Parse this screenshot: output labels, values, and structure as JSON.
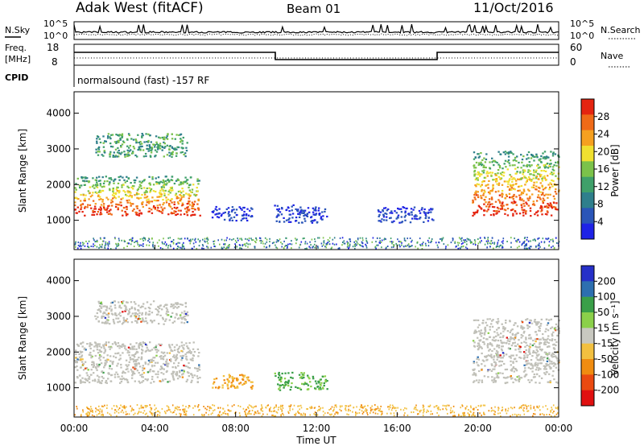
{
  "header": {
    "radar": "Adak West (fitACF)",
    "beam": "Beam 01",
    "date": "11/Oct/2016"
  },
  "panels": {
    "nsky": {
      "label": "N.Sky",
      "left_ticks": [
        "10^5",
        "10^0"
      ],
      "right_ticks": [
        "10^5",
        "10^0"
      ],
      "right_label": "N.Search"
    },
    "freq": {
      "label_top": "Freq.",
      "label_unit": "[MHz]",
      "left_ticks": [
        "18",
        "8"
      ],
      "right_ticks": [
        "60",
        "0"
      ],
      "right_label": "Nave"
    },
    "cpid": {
      "label": "CPID",
      "text": "normalsound (fast) -157 RF"
    }
  },
  "colors": {
    "power_scale": [
      "#1e22e6",
      "#2a55b8",
      "#2f7f8c",
      "#3fa06a",
      "#7bc24a",
      "#f0e030",
      "#f5a020",
      "#ef6a18",
      "#e42410"
    ],
    "velocity_scale": [
      "#2630c8",
      "#2d6fb0",
      "#3a9f48",
      "#8bd04a",
      "#c8c8c0",
      "#f2c040",
      "#f08c10",
      "#ea4a10",
      "#e01010"
    ],
    "ground_scatter": "#c0c0b8"
  },
  "chart_data": [
    {
      "type": "heatmap",
      "name": "power",
      "ylabel": "Slant Range [km]",
      "xlabel": "",
      "xlim": [
        "00:00",
        "24:00"
      ],
      "ylim": [
        180,
        4600
      ],
      "yticks": [
        "1000",
        "2000",
        "3000",
        "4000"
      ],
      "colorbar": {
        "label": "Power [dB]",
        "ticks": [
          "4",
          "8",
          "12",
          "16",
          "20",
          "24",
          "28"
        ]
      },
      "regions": [
        {
          "t0": 0.0,
          "t1": 6.2,
          "r0": 1150,
          "r1": 2250,
          "level": "strong"
        },
        {
          "t0": 1.0,
          "t1": 5.6,
          "r0": 2800,
          "r1": 3450,
          "level": "medium"
        },
        {
          "t0": 6.8,
          "t1": 8.8,
          "r0": 1000,
          "r1": 1400,
          "level": "weak"
        },
        {
          "t0": 9.9,
          "t1": 12.5,
          "r0": 950,
          "r1": 1450,
          "level": "weak"
        },
        {
          "t0": 15.0,
          "t1": 17.8,
          "r0": 950,
          "r1": 1400,
          "level": "weak"
        },
        {
          "t0": 19.7,
          "t1": 24.0,
          "r0": 1150,
          "r1": 2950,
          "level": "strong"
        }
      ]
    },
    {
      "type": "heatmap",
      "name": "velocity",
      "ylabel": "Slant Range [km]",
      "xlabel": "Time UT",
      "xlim": [
        "00:00",
        "24:00"
      ],
      "xticks": [
        "00:00",
        "04:00",
        "08:00",
        "12:00",
        "16:00",
        "20:00",
        "00:00"
      ],
      "ylim": [
        180,
        4600
      ],
      "yticks": [
        "1000",
        "2000",
        "3000",
        "4000"
      ],
      "colorbar": {
        "label": "Velocity [m s⁻¹]",
        "ticks": [
          "200",
          "100",
          "50",
          "15",
          "-15",
          "-50",
          "-100",
          "-200"
        ]
      },
      "regions": [
        {
          "t0": 0.0,
          "t1": 6.2,
          "r0": 1150,
          "r1": 2300,
          "type": "ground"
        },
        {
          "t0": 1.0,
          "t1": 5.6,
          "r0": 2800,
          "r1": 3450,
          "type": "ground"
        },
        {
          "t0": 6.8,
          "t1": 8.8,
          "r0": 1000,
          "r1": 1400,
          "type": "negative"
        },
        {
          "t0": 9.9,
          "t1": 12.5,
          "r0": 950,
          "r1": 1450,
          "type": "positive"
        },
        {
          "t0": 19.7,
          "t1": 24.0,
          "r0": 1150,
          "r1": 2950,
          "type": "ground"
        }
      ]
    }
  ]
}
